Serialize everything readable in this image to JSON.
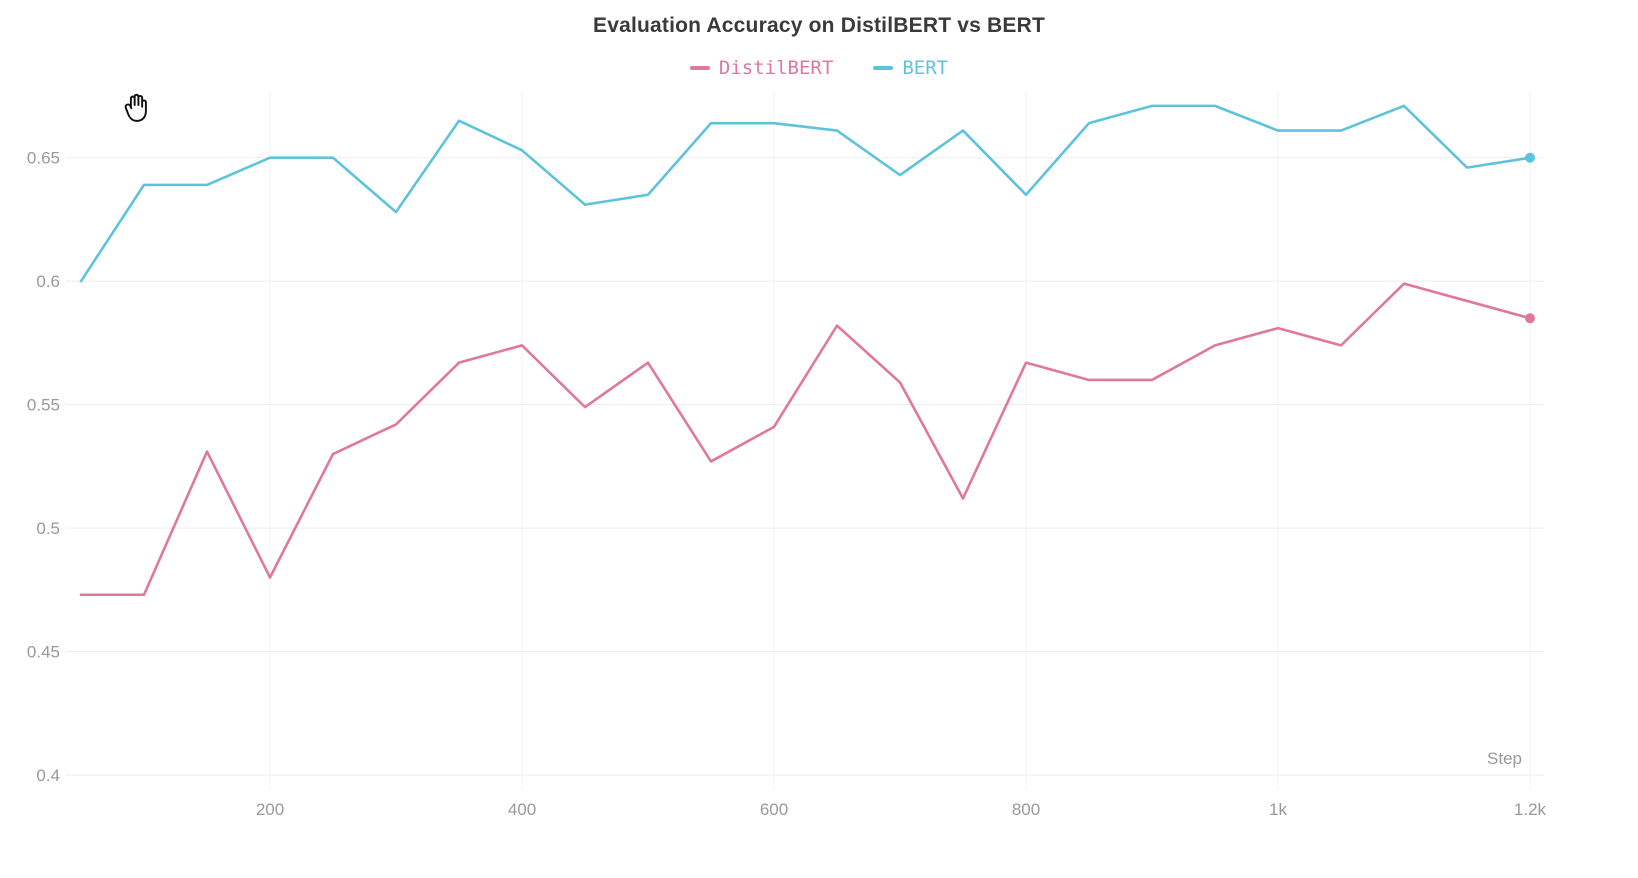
{
  "title": "Evaluation Accuracy on DistilBERT vs BERT",
  "xlabel": "Step",
  "legend": [
    {
      "label": "DistilBERT",
      "color": "#e0789c"
    },
    {
      "label": "BERT",
      "color": "#5dc3dc"
    }
  ],
  "colors": {
    "distilbert": "#e0789c",
    "bert": "#5dc3dc",
    "grid": "#ededed",
    "tick_text": "#999999",
    "title_text": "#3a3a3a"
  },
  "chart_data": {
    "type": "line",
    "title": "Evaluation Accuracy on DistilBERT vs BERT",
    "xlabel": "Step",
    "ylabel": "",
    "xlim": [
      50,
      1200
    ],
    "ylim": [
      0.4,
      0.675
    ],
    "grid": true,
    "legend_position": "top-center",
    "x": [
      50,
      100,
      150,
      200,
      250,
      300,
      350,
      400,
      450,
      500,
      550,
      600,
      650,
      700,
      750,
      800,
      850,
      900,
      950,
      1000,
      1050,
      1100,
      1150,
      1200
    ],
    "series": [
      {
        "name": "DistilBERT",
        "color": "#e0789c",
        "values": [
          0.473,
          0.473,
          0.531,
          0.48,
          0.53,
          0.542,
          0.567,
          0.574,
          0.549,
          0.567,
          0.527,
          0.541,
          0.582,
          0.559,
          0.512,
          0.567,
          0.56,
          0.56,
          0.574,
          0.581,
          0.574,
          0.599,
          0.592,
          0.585
        ]
      },
      {
        "name": "BERT",
        "color": "#5dc3dc",
        "values": [
          0.6,
          0.639,
          0.639,
          0.65,
          0.65,
          0.628,
          0.665,
          0.653,
          0.631,
          0.635,
          0.664,
          0.664,
          0.661,
          0.643,
          0.661,
          0.635,
          0.664,
          0.671,
          0.671,
          0.661,
          0.661,
          0.671,
          0.646,
          0.65
        ]
      }
    ],
    "xticks": [
      {
        "value": 200,
        "label": "200"
      },
      {
        "value": 400,
        "label": "400"
      },
      {
        "value": 600,
        "label": "600"
      },
      {
        "value": 800,
        "label": "800"
      },
      {
        "value": 1000,
        "label": "1k"
      },
      {
        "value": 1200,
        "label": "1.2k"
      }
    ],
    "yticks": [
      {
        "value": 0.4,
        "label": "0.4"
      },
      {
        "value": 0.45,
        "label": "0.45"
      },
      {
        "value": 0.5,
        "label": "0.5"
      },
      {
        "value": 0.55,
        "label": "0.55"
      },
      {
        "value": 0.6,
        "label": "0.6"
      },
      {
        "value": 0.65,
        "label": "0.65"
      }
    ]
  }
}
